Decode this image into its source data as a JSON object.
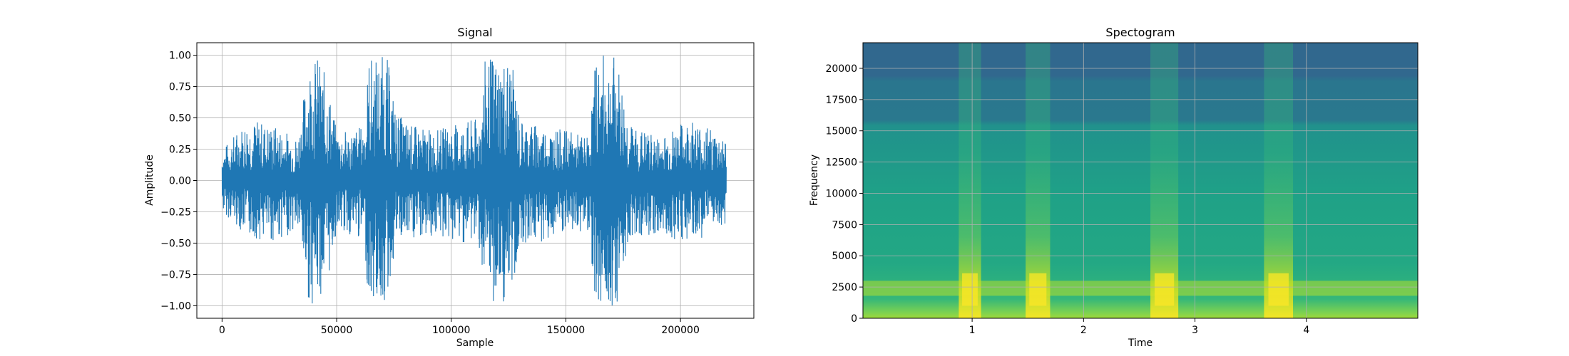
{
  "chart_data": [
    {
      "type": "line",
      "title": "Signal",
      "xlabel": "Sample",
      "ylabel": "Amplitude",
      "xlim": [
        -11000,
        232000
      ],
      "ylim": [
        -1.1,
        1.1
      ],
      "xticks": [
        0,
        50000,
        100000,
        150000,
        200000
      ],
      "xtick_labels": [
        "0",
        "50000",
        "100000",
        "150000",
        "200000"
      ],
      "yticks": [
        1.0,
        0.75,
        0.5,
        0.25,
        0.0,
        -0.25,
        -0.5,
        -0.75,
        -1.0
      ],
      "ytick_labels": [
        "1.00",
        "0.75",
        "0.50",
        "0.25",
        "0.00",
        "−0.25",
        "−0.50",
        "−0.75",
        "−1.00"
      ],
      "grid": true,
      "color": "#1f77b4",
      "series": [
        {
          "x": [
            0,
            11000,
            22000,
            33000,
            38000,
            42000,
            46000,
            50000,
            56000,
            62000,
            64000,
            68000,
            72000,
            76000,
            82000,
            92000,
            102000,
            112000,
            115000,
            120000,
            126000,
            130000,
            138000,
            150000,
            160000,
            163000,
            168000,
            172000,
            178000,
            190000,
            205000,
            220000
          ],
          "y_max": [
            0.25,
            0.5,
            0.45,
            0.35,
            0.98,
            1.0,
            0.8,
            0.4,
            0.4,
            0.45,
            1.0,
            1.0,
            1.0,
            0.55,
            0.45,
            0.4,
            0.45,
            0.5,
            1.0,
            1.0,
            1.0,
            0.5,
            0.45,
            0.4,
            0.35,
            1.0,
            1.0,
            1.0,
            0.45,
            0.35,
            0.5,
            0.35
          ],
          "y_min": [
            -0.25,
            -0.45,
            -0.5,
            -0.4,
            -1.0,
            -0.95,
            -0.85,
            -0.4,
            -0.45,
            -0.5,
            -1.0,
            -1.0,
            -1.0,
            -0.5,
            -0.5,
            -0.45,
            -0.5,
            -0.5,
            -1.0,
            -1.0,
            -1.0,
            -0.5,
            -0.5,
            -0.45,
            -0.4,
            -1.0,
            -1.0,
            -1.0,
            -0.45,
            -0.45,
            -0.5,
            -0.35
          ]
        }
      ]
    },
    {
      "type": "heatmap",
      "title": "Spectogram",
      "xlabel": "Time",
      "ylabel": "Frequency",
      "xlim": [
        0.02,
        5.0
      ],
      "ylim": [
        0,
        22050
      ],
      "xticks": [
        1,
        2,
        3,
        4
      ],
      "xtick_labels": [
        "1",
        "2",
        "3",
        "4"
      ],
      "yticks": [
        0,
        2500,
        5000,
        7500,
        10000,
        12500,
        15000,
        17500,
        20000
      ],
      "ytick_labels": [
        "0",
        "2500",
        "5000",
        "7500",
        "10000",
        "12500",
        "15000",
        "17500",
        "20000"
      ],
      "grid": true,
      "colormap": "viridis",
      "high_energy_time_bands": [
        [
          0.88,
          1.08
        ],
        [
          1.48,
          1.7
        ],
        [
          2.6,
          2.85
        ],
        [
          3.62,
          3.88
        ]
      ],
      "bright_frequency_band": [
        1800,
        3000
      ],
      "upper_cutoff_frequency": 16000
    }
  ]
}
